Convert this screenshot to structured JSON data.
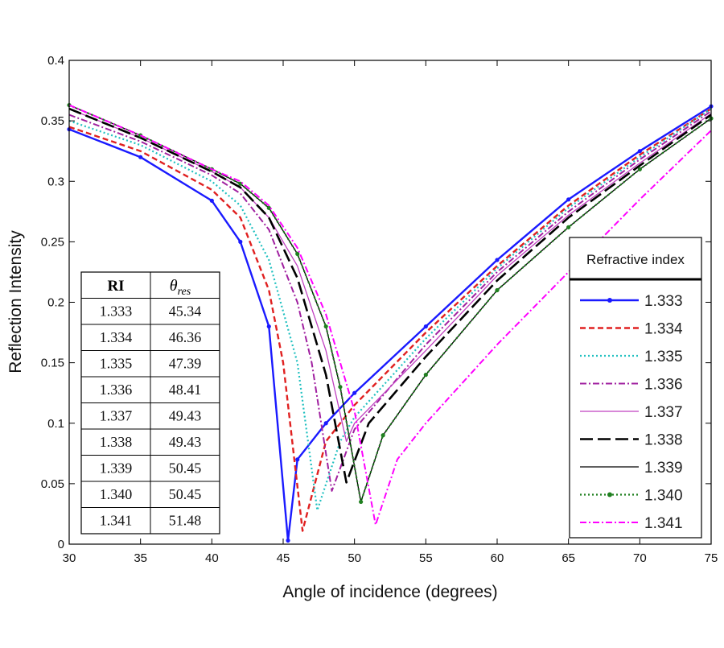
{
  "chart_data": {
    "type": "line",
    "title": "",
    "xlabel": "Angle of incidence (degrees)",
    "ylabel": "Reflection Intensity",
    "xlim": [
      30,
      75
    ],
    "ylim": [
      0,
      0.4
    ],
    "xticks": [
      30,
      35,
      40,
      45,
      50,
      55,
      60,
      65,
      70,
      75
    ],
    "yticks": [
      0,
      0.05,
      0.1,
      0.15,
      0.2,
      0.25,
      0.3,
      0.35,
      0.4
    ],
    "ytick_labels": [
      "0",
      "0.05",
      "0.1",
      "0.15",
      "0.2",
      "0.25",
      "0.3",
      "0.35",
      "0.4"
    ],
    "grid": false,
    "legend": {
      "title": "Refractive index",
      "position": "right"
    },
    "series": [
      {
        "name": "1.333",
        "color": "#1a1aff",
        "style": "solid-dot",
        "x": [
          30,
          35,
          40,
          42,
          44,
          45.34,
          46,
          48,
          50,
          55,
          60,
          65,
          70,
          75
        ],
        "y": [
          0.343,
          0.32,
          0.284,
          0.25,
          0.18,
          0.003,
          0.07,
          0.1,
          0.125,
          0.18,
          0.235,
          0.285,
          0.325,
          0.362
        ]
      },
      {
        "name": "1.334",
        "color": "#e02020",
        "style": "dashed",
        "x": [
          30,
          35,
          40,
          42,
          44,
          45,
          46.36,
          48,
          50,
          55,
          60,
          65,
          70,
          75
        ],
        "y": [
          0.345,
          0.325,
          0.293,
          0.27,
          0.21,
          0.15,
          0.011,
          0.085,
          0.115,
          0.175,
          0.23,
          0.28,
          0.322,
          0.36
        ]
      },
      {
        "name": "1.335",
        "color": "#20c0c0",
        "style": "dotted",
        "x": [
          30,
          35,
          40,
          42,
          44,
          46,
          47.39,
          49,
          50,
          55,
          60,
          65,
          70,
          75
        ],
        "y": [
          0.35,
          0.33,
          0.3,
          0.28,
          0.235,
          0.15,
          0.028,
          0.085,
          0.105,
          0.17,
          0.228,
          0.278,
          0.32,
          0.36
        ]
      },
      {
        "name": "1.336",
        "color": "#a020a0",
        "style": "dashdot",
        "x": [
          30,
          35,
          40,
          42,
          44,
          46,
          47,
          48.41,
          50,
          55,
          60,
          65,
          70,
          75
        ],
        "y": [
          0.355,
          0.333,
          0.305,
          0.29,
          0.26,
          0.2,
          0.15,
          0.044,
          0.095,
          0.165,
          0.225,
          0.275,
          0.318,
          0.358
        ]
      },
      {
        "name": "1.337",
        "color": "#c040c0",
        "style": "thin",
        "x": [
          30,
          35,
          40,
          42,
          44,
          46,
          48,
          49.43,
          50,
          55,
          60,
          65,
          70,
          75
        ],
        "y": [
          0.36,
          0.336,
          0.308,
          0.295,
          0.27,
          0.23,
          0.16,
          0.085,
          0.1,
          0.16,
          0.222,
          0.272,
          0.315,
          0.356
        ]
      },
      {
        "name": "1.338",
        "color": "#000000",
        "style": "longdash",
        "x": [
          30,
          35,
          40,
          42,
          44,
          46,
          48,
          49.43,
          51,
          55,
          60,
          65,
          70,
          75
        ],
        "y": [
          0.36,
          0.336,
          0.308,
          0.295,
          0.27,
          0.22,
          0.14,
          0.051,
          0.1,
          0.155,
          0.218,
          0.27,
          0.313,
          0.355
        ]
      },
      {
        "name": "1.339",
        "color": "#000000",
        "style": "thin",
        "x": [
          30,
          35,
          40,
          42,
          44,
          46,
          48,
          49,
          50.45,
          52,
          55,
          60,
          65,
          70,
          75
        ],
        "y": [
          0.363,
          0.338,
          0.31,
          0.298,
          0.278,
          0.24,
          0.18,
          0.13,
          0.035,
          0.09,
          0.14,
          0.21,
          0.262,
          0.31,
          0.352
        ]
      },
      {
        "name": "1.340",
        "color": "#208020",
        "style": "dotted-dot",
        "x": [
          30,
          35,
          40,
          42,
          44,
          46,
          48,
          49,
          50.45,
          52,
          55,
          60,
          65,
          70,
          75
        ],
        "y": [
          0.363,
          0.338,
          0.31,
          0.298,
          0.278,
          0.24,
          0.18,
          0.13,
          0.035,
          0.09,
          0.14,
          0.21,
          0.262,
          0.31,
          0.352
        ]
      },
      {
        "name": "1.341",
        "color": "#ff00ff",
        "style": "dashdot",
        "x": [
          30,
          35,
          40,
          42,
          44,
          46,
          48,
          50,
          51.48,
          53,
          55,
          60,
          65,
          70,
          75
        ],
        "y": [
          0.363,
          0.338,
          0.31,
          0.3,
          0.28,
          0.245,
          0.19,
          0.11,
          0.016,
          0.07,
          0.1,
          0.165,
          0.225,
          0.285,
          0.342
        ]
      }
    ],
    "inset_table": {
      "headers": [
        "RI",
        "θres"
      ],
      "header_symbol": "θ",
      "header_subscript": "res",
      "rows": [
        [
          "1.333",
          "45.34"
        ],
        [
          "1.334",
          "46.36"
        ],
        [
          "1.335",
          "47.39"
        ],
        [
          "1.336",
          "48.41"
        ],
        [
          "1.337",
          "49.43"
        ],
        [
          "1.338",
          "49.43"
        ],
        [
          "1.339",
          "50.45"
        ],
        [
          "1.340",
          "50.45"
        ],
        [
          "1.341",
          "51.48"
        ]
      ]
    }
  }
}
